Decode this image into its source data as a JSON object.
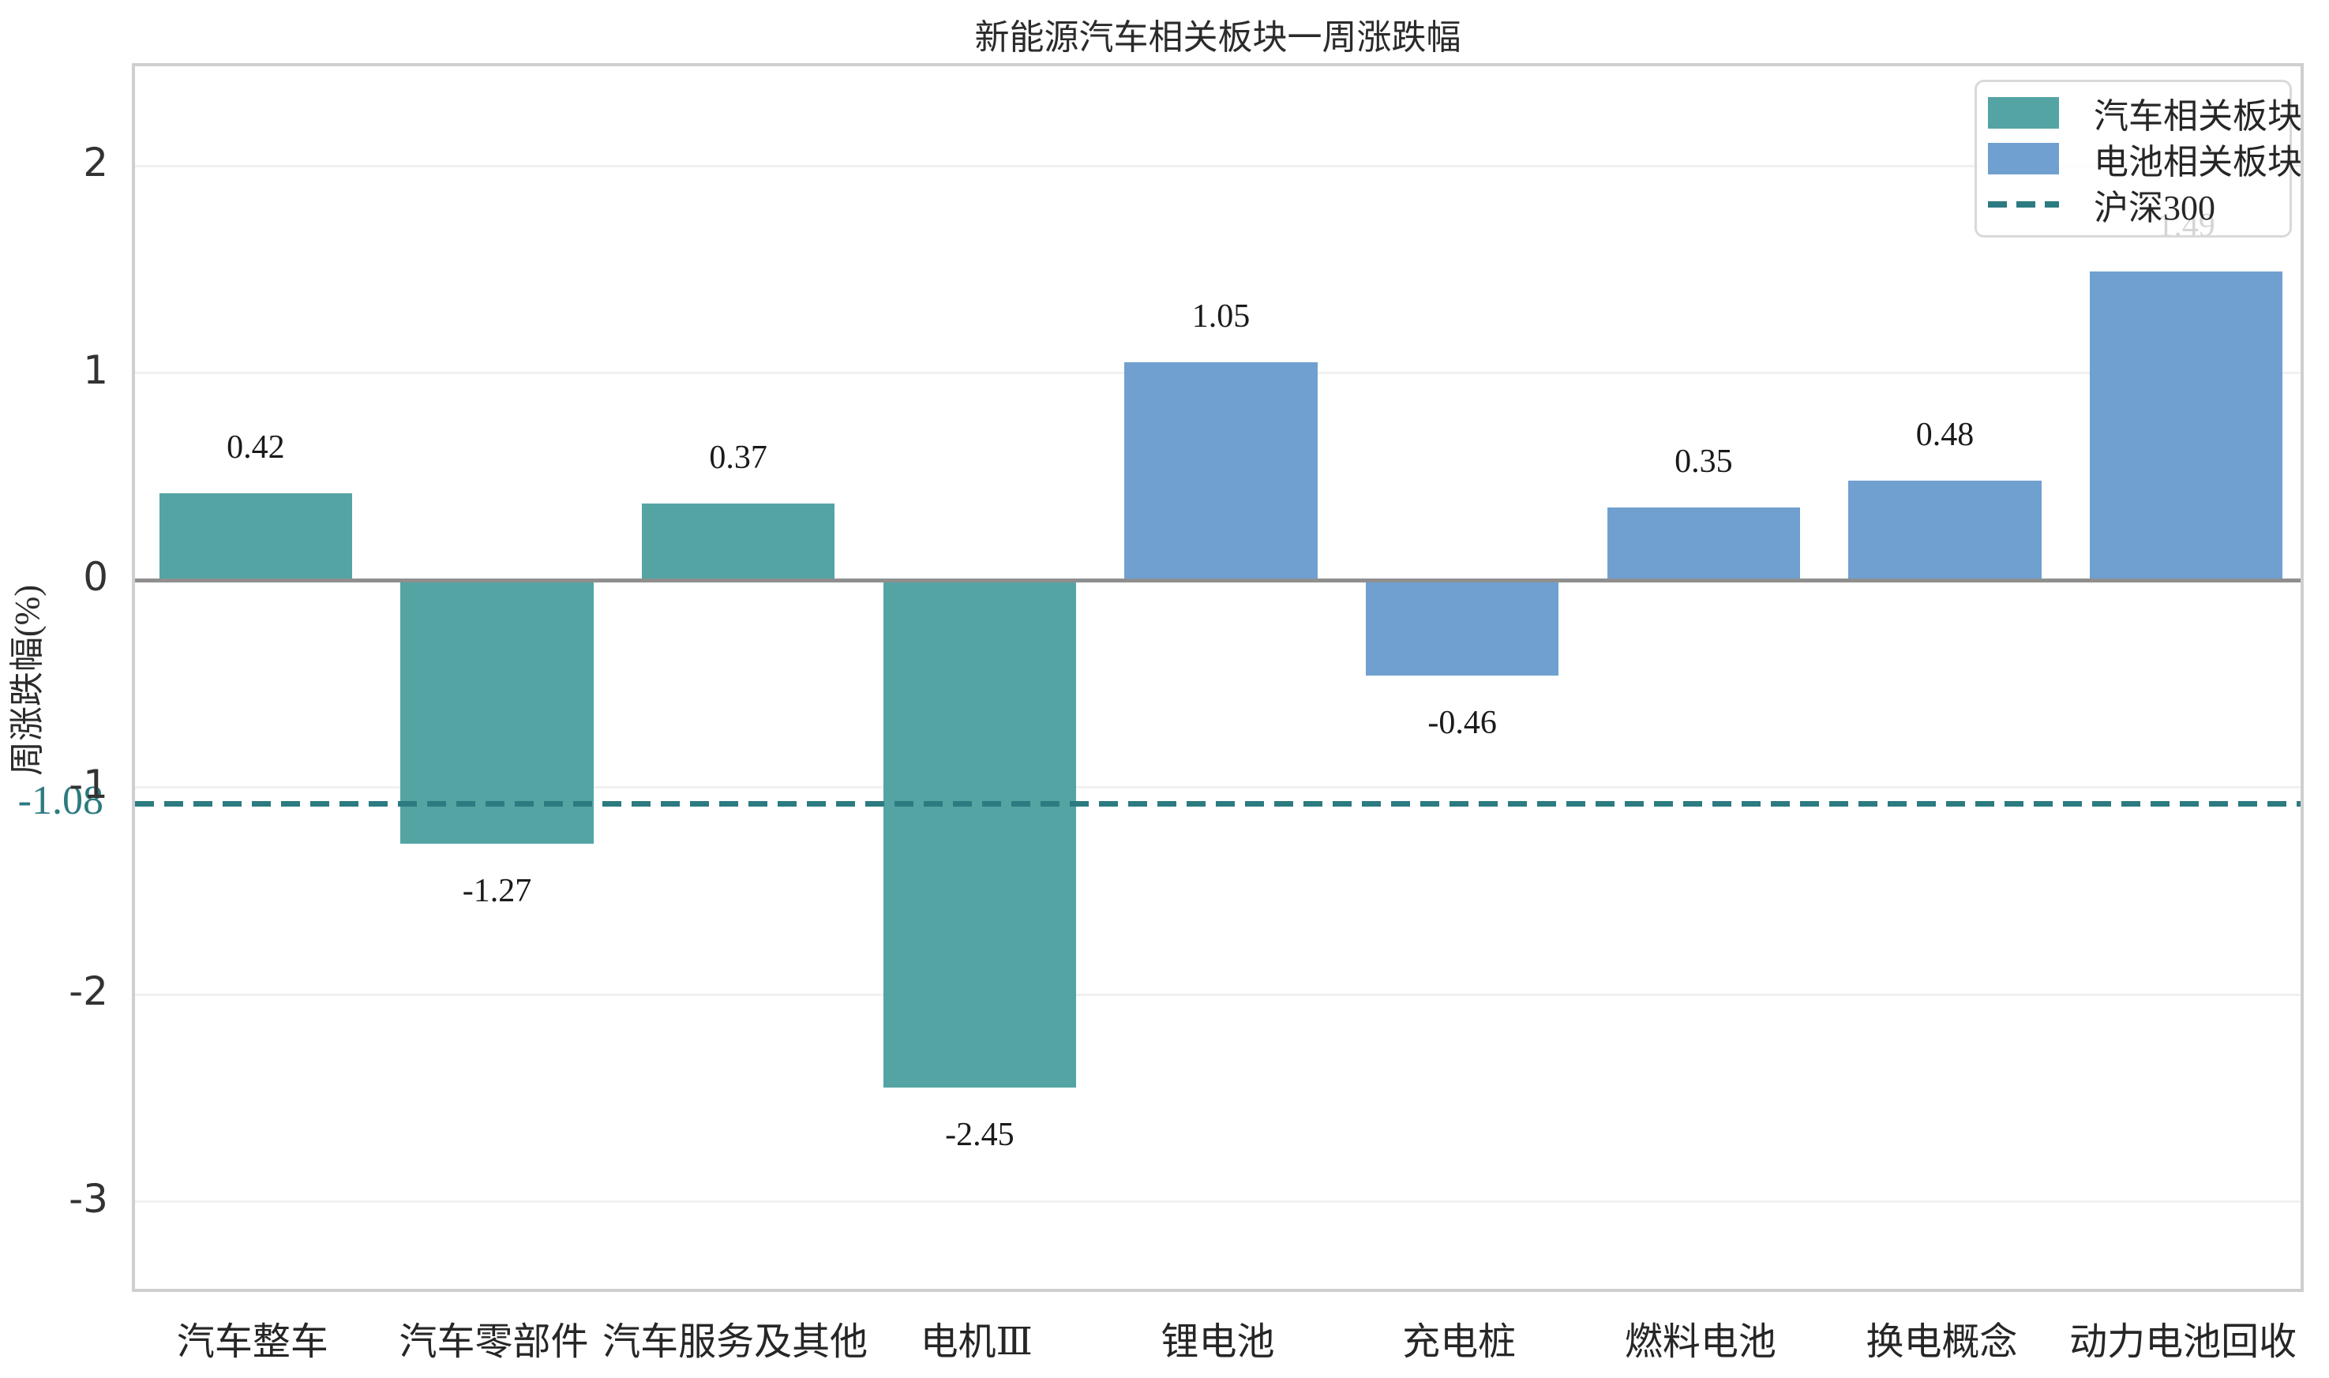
{
  "figure": {
    "title": "新能源汽车相关板块一周涨跌幅",
    "ylabel": "周涨跌幅(%)"
  },
  "legend": {
    "position": "upper right",
    "items": [
      {
        "label": "汽车相关板块",
        "marker": "rect",
        "color": "#54A4A4"
      },
      {
        "label": "电池相关板块",
        "marker": "rect",
        "color": "#6FA0D0"
      },
      {
        "label": "沪深300",
        "marker": "dashed-line",
        "color": "#2C7B80"
      }
    ]
  },
  "chart_data": {
    "type": "bar",
    "title": "新能源汽车相关板块一周涨跌幅",
    "xlabel": "",
    "ylabel": "周涨跌幅(%)",
    "categories": [
      "汽车整车",
      "汽车零部件",
      "汽车服务及其他",
      "电机Ⅲ",
      "锂电池",
      "充电桩",
      "燃料电池",
      "换电概念",
      "动力电池回收"
    ],
    "series": [
      {
        "name": "汽车相关板块",
        "color": "#54A4A4",
        "categories": [
          "汽车整车",
          "汽车零部件",
          "汽车服务及其他",
          "电机Ⅲ"
        ],
        "values": [
          0.42,
          -1.27,
          0.37,
          -2.45
        ]
      },
      {
        "name": "电池相关板块",
        "color": "#6FA0D0",
        "categories": [
          "锂电池",
          "充电桩",
          "燃料电池",
          "换电概念",
          "动力电池回收"
        ],
        "values": [
          1.05,
          -0.46,
          0.35,
          0.48,
          1.49
        ]
      }
    ],
    "reference_line": {
      "name": "沪深300",
      "value": -1.08,
      "annotation": "-1.08",
      "color": "#2C7B80",
      "style": "dashed"
    },
    "yticks": [
      2,
      1,
      0,
      -1,
      -2,
      -3
    ],
    "ylim": [
      -3.45,
      2.48
    ],
    "grid": true,
    "bar_width_ratio": 0.8,
    "legend_position": "upper right",
    "colors": {
      "zero_line": "#8F8F8F",
      "gridline": "#F1F1F1",
      "spine": "#CFCFCF"
    }
  }
}
